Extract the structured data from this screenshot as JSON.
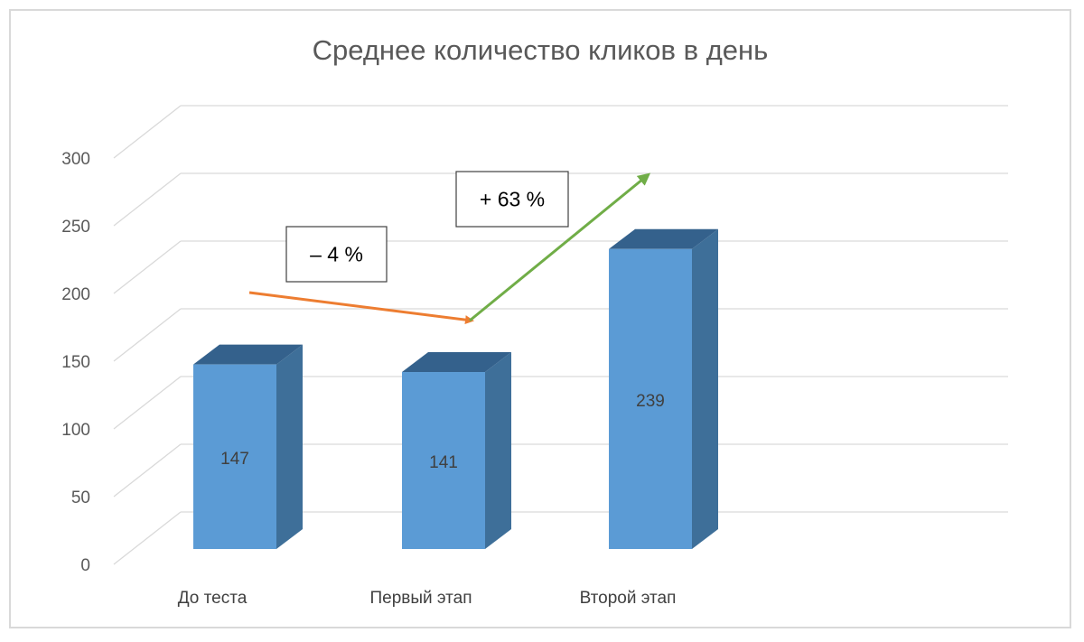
{
  "chart_data": {
    "type": "bar",
    "title": "Среднее количество кликов в день",
    "categories": [
      "До теста",
      "Первый этап",
      "Второй этап"
    ],
    "values": [
      147,
      141,
      239
    ],
    "ylim": [
      0,
      300
    ],
    "yticks": [
      0,
      50,
      100,
      150,
      200,
      250,
      300
    ],
    "grid": true,
    "legend": "none",
    "style": "3d-column",
    "colors": {
      "front": "#5b9bd5",
      "side": "#3e6f99",
      "top": "#34618c",
      "decrease": "#ed7d31",
      "increase": "#70ad47"
    },
    "annotations": [
      {
        "text": "– 4 %",
        "from": "До теста",
        "to": "Первый этап",
        "trend": "decrease"
      },
      {
        "text": "+ 63 %",
        "from": "Первый этап",
        "to": "Второй этап",
        "trend": "increase"
      }
    ]
  }
}
